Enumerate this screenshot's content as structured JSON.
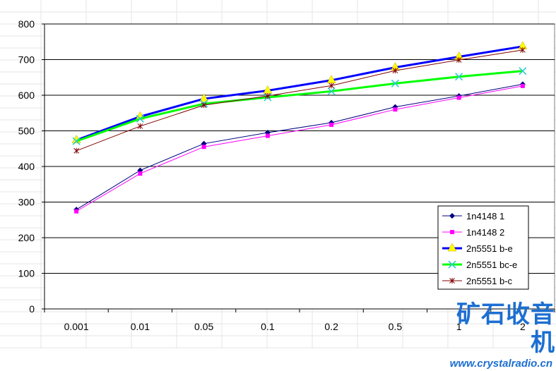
{
  "chart_data": {
    "type": "line",
    "categories": [
      "0.001",
      "0.01",
      "0.05",
      "0.1",
      "0.2",
      "0.5",
      "1",
      "2"
    ],
    "ylim": [
      0,
      800
    ],
    "yticks": [
      "0",
      "100",
      "200",
      "300",
      "400",
      "500",
      "600",
      "700",
      "800"
    ],
    "grid": "horizontal",
    "legend_position": "bottom-right",
    "series": [
      {
        "name": "1n4148 1",
        "color": "#000080",
        "marker": "diamond",
        "values": [
          279,
          389,
          464,
          495,
          523,
          567,
          598,
          631
        ]
      },
      {
        "name": "1n4148 2",
        "color": "#ff00ff",
        "marker": "square",
        "values": [
          274,
          380,
          455,
          486,
          517,
          560,
          593,
          626
        ]
      },
      {
        "name": "2n5551 b-e",
        "color": "#0000ff",
        "marker": "triangle",
        "marker_color": "#ffff00",
        "values": [
          474,
          540,
          590,
          613,
          642,
          678,
          708,
          737
        ]
      },
      {
        "name": "2n5551 bc-e",
        "color": "#00ff00",
        "marker": "x",
        "marker_color": "#33cccc",
        "values": [
          471,
          534,
          576,
          594,
          611,
          633,
          652,
          668
        ]
      },
      {
        "name": "2n5551 b-c",
        "color": "#800000",
        "marker": "star",
        "values": [
          444,
          513,
          572,
          598,
          627,
          669,
          699,
          727
        ]
      }
    ]
  },
  "watermark": {
    "title": "矿石收音机",
    "url": "www.crystalradio.cn"
  }
}
